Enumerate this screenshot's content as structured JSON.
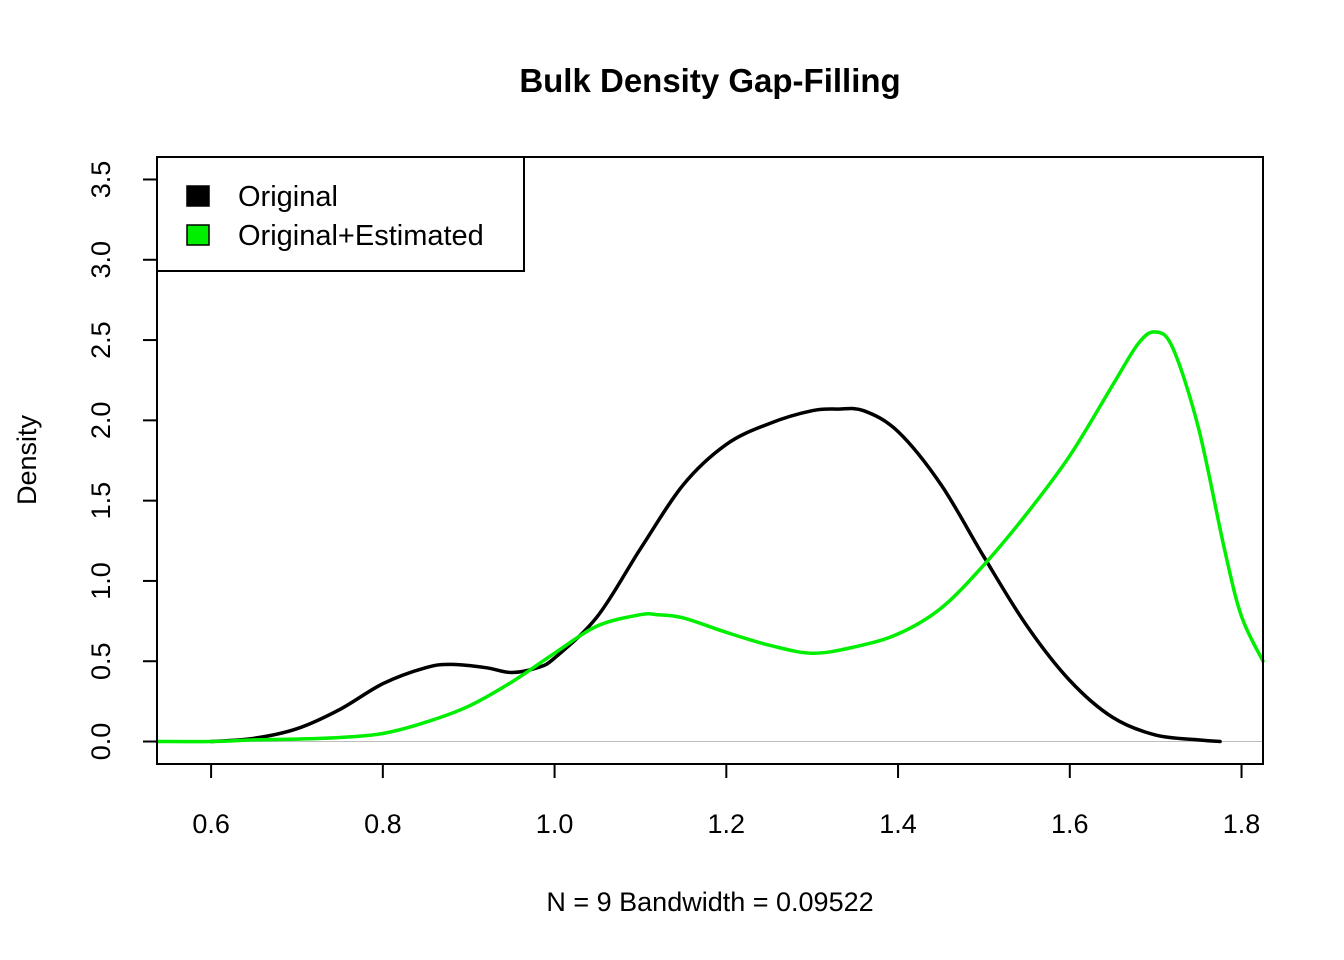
{
  "chart_data": {
    "type": "line",
    "title": "Bulk Density Gap-Filling",
    "xlabel": "N = 9   Bandwidth = 0.09522",
    "ylabel": "Density",
    "xlim": [
      0.537,
      1.825
    ],
    "ylim": [
      -0.14,
      3.64
    ],
    "x_ticks": [
      "0.6",
      "0.8",
      "1.0",
      "1.2",
      "1.4",
      "1.6",
      "1.8"
    ],
    "y_ticks": [
      "0.0",
      "0.5",
      "1.0",
      "1.5",
      "2.0",
      "2.5",
      "3.0",
      "3.5"
    ],
    "baseline": 0,
    "legend_position": "top-left",
    "series": [
      {
        "name": "Original",
        "color": "#000000",
        "points": [
          [
            0.6,
            0.0
          ],
          [
            0.65,
            0.02
          ],
          [
            0.7,
            0.08
          ],
          [
            0.75,
            0.2
          ],
          [
            0.8,
            0.36
          ],
          [
            0.85,
            0.46
          ],
          [
            0.88,
            0.48
          ],
          [
            0.92,
            0.46
          ],
          [
            0.95,
            0.43
          ],
          [
            0.98,
            0.46
          ],
          [
            1.0,
            0.52
          ],
          [
            1.05,
            0.78
          ],
          [
            1.1,
            1.2
          ],
          [
            1.15,
            1.6
          ],
          [
            1.2,
            1.85
          ],
          [
            1.25,
            1.98
          ],
          [
            1.3,
            2.06
          ],
          [
            1.33,
            2.07
          ],
          [
            1.36,
            2.06
          ],
          [
            1.4,
            1.93
          ],
          [
            1.45,
            1.6
          ],
          [
            1.5,
            1.15
          ],
          [
            1.55,
            0.72
          ],
          [
            1.6,
            0.38
          ],
          [
            1.65,
            0.15
          ],
          [
            1.7,
            0.04
          ],
          [
            1.75,
            0.01
          ],
          [
            1.775,
            0.0
          ]
        ]
      },
      {
        "name": "Original+Estimated",
        "color": "#00ee00",
        "points": [
          [
            0.537,
            0.0
          ],
          [
            0.6,
            0.0
          ],
          [
            0.65,
            0.01
          ],
          [
            0.7,
            0.015
          ],
          [
            0.75,
            0.025
          ],
          [
            0.8,
            0.05
          ],
          [
            0.85,
            0.12
          ],
          [
            0.9,
            0.22
          ],
          [
            0.95,
            0.37
          ],
          [
            1.0,
            0.55
          ],
          [
            1.05,
            0.72
          ],
          [
            1.1,
            0.79
          ],
          [
            1.12,
            0.79
          ],
          [
            1.15,
            0.77
          ],
          [
            1.2,
            0.68
          ],
          [
            1.25,
            0.6
          ],
          [
            1.3,
            0.55
          ],
          [
            1.35,
            0.59
          ],
          [
            1.4,
            0.67
          ],
          [
            1.45,
            0.83
          ],
          [
            1.5,
            1.1
          ],
          [
            1.55,
            1.42
          ],
          [
            1.6,
            1.78
          ],
          [
            1.65,
            2.22
          ],
          [
            1.68,
            2.48
          ],
          [
            1.7,
            2.55
          ],
          [
            1.72,
            2.45
          ],
          [
            1.75,
            1.95
          ],
          [
            1.78,
            1.2
          ],
          [
            1.8,
            0.78
          ],
          [
            1.825,
            0.5
          ]
        ]
      }
    ]
  }
}
